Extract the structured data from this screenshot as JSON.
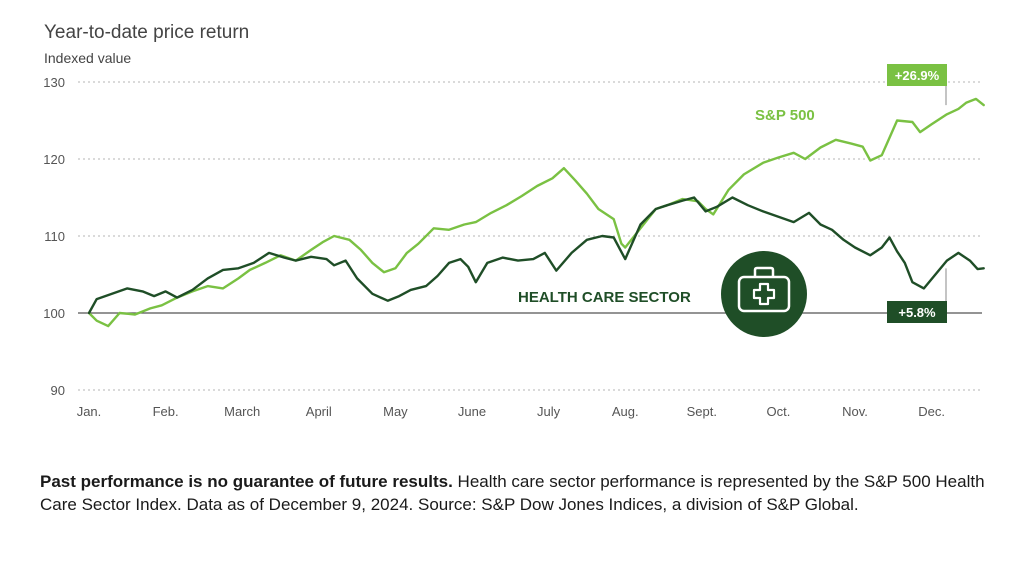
{
  "chart_data": {
    "type": "line",
    "title": "Year-to-date price return",
    "ylabel": "Indexed value",
    "ylim": [
      90,
      130
    ],
    "yticks": [
      90,
      100,
      110,
      120,
      130
    ],
    "grid": true,
    "months": [
      "Jan.",
      "Feb.",
      "March",
      "April",
      "May",
      "June",
      "July",
      "Aug.",
      "Sept.",
      "Oct.",
      "Nov.",
      "Dec."
    ],
    "baseline": 100,
    "colors": {
      "sp500": "#7ac143",
      "health": "#1f4e27",
      "baseline": "#555555",
      "grid": "#b5b5b5"
    },
    "series": [
      {
        "name": "S&P 500",
        "end_label": "+26.9%",
        "points": [
          [
            0.0,
            100.0
          ],
          [
            0.1,
            99.0
          ],
          [
            0.25,
            98.3
          ],
          [
            0.4,
            100.0
          ],
          [
            0.6,
            99.8
          ],
          [
            0.8,
            100.6
          ],
          [
            0.95,
            101.0
          ],
          [
            1.15,
            102.0
          ],
          [
            1.35,
            102.8
          ],
          [
            1.55,
            103.5
          ],
          [
            1.75,
            103.2
          ],
          [
            1.95,
            104.5
          ],
          [
            2.1,
            105.6
          ],
          [
            2.3,
            106.5
          ],
          [
            2.5,
            107.5
          ],
          [
            2.7,
            106.8
          ],
          [
            2.9,
            108.2
          ],
          [
            3.05,
            109.2
          ],
          [
            3.2,
            110.0
          ],
          [
            3.4,
            109.5
          ],
          [
            3.55,
            108.2
          ],
          [
            3.7,
            106.5
          ],
          [
            3.85,
            105.3
          ],
          [
            4.0,
            105.8
          ],
          [
            4.15,
            107.8
          ],
          [
            4.3,
            109.0
          ],
          [
            4.5,
            111.0
          ],
          [
            4.7,
            110.8
          ],
          [
            4.9,
            111.5
          ],
          [
            5.05,
            111.8
          ],
          [
            5.25,
            113.0
          ],
          [
            5.45,
            114.0
          ],
          [
            5.65,
            115.2
          ],
          [
            5.85,
            116.5
          ],
          [
            6.05,
            117.5
          ],
          [
            6.2,
            118.8
          ],
          [
            6.35,
            117.2
          ],
          [
            6.5,
            115.5
          ],
          [
            6.65,
            113.5
          ],
          [
            6.85,
            112.2
          ],
          [
            6.95,
            109.0
          ],
          [
            7.0,
            108.5
          ],
          [
            7.2,
            111.0
          ],
          [
            7.4,
            113.5
          ],
          [
            7.55,
            114.0
          ],
          [
            7.75,
            114.8
          ],
          [
            7.95,
            114.5
          ],
          [
            8.05,
            113.5
          ],
          [
            8.15,
            112.8
          ],
          [
            8.35,
            116.0
          ],
          [
            8.55,
            118.0
          ],
          [
            8.8,
            119.5
          ],
          [
            9.0,
            120.2
          ],
          [
            9.2,
            120.8
          ],
          [
            9.35,
            120.0
          ],
          [
            9.55,
            121.5
          ],
          [
            9.75,
            122.5
          ],
          [
            9.95,
            122.0
          ],
          [
            10.1,
            121.6
          ],
          [
            10.2,
            119.8
          ],
          [
            10.35,
            120.5
          ],
          [
            10.55,
            125.0
          ],
          [
            10.75,
            124.8
          ],
          [
            10.85,
            123.5
          ],
          [
            11.0,
            124.5
          ],
          [
            11.2,
            125.8
          ],
          [
            11.35,
            126.5
          ],
          [
            11.45,
            127.3
          ],
          [
            11.58,
            127.8
          ],
          [
            11.68,
            127.0
          ]
        ]
      },
      {
        "name": "HEALTH CARE SECTOR",
        "end_label": "+5.8%",
        "points": [
          [
            0.0,
            100.0
          ],
          [
            0.1,
            101.8
          ],
          [
            0.3,
            102.5
          ],
          [
            0.5,
            103.2
          ],
          [
            0.7,
            102.8
          ],
          [
            0.85,
            102.2
          ],
          [
            1.0,
            102.8
          ],
          [
            1.15,
            102.0
          ],
          [
            1.35,
            103.0
          ],
          [
            1.55,
            104.5
          ],
          [
            1.75,
            105.6
          ],
          [
            1.95,
            105.8
          ],
          [
            2.15,
            106.5
          ],
          [
            2.35,
            107.8
          ],
          [
            2.55,
            107.2
          ],
          [
            2.7,
            106.8
          ],
          [
            2.9,
            107.3
          ],
          [
            3.1,
            107.0
          ],
          [
            3.2,
            106.2
          ],
          [
            3.35,
            106.8
          ],
          [
            3.5,
            104.5
          ],
          [
            3.7,
            102.5
          ],
          [
            3.9,
            101.6
          ],
          [
            4.05,
            102.2
          ],
          [
            4.2,
            103.0
          ],
          [
            4.4,
            103.5
          ],
          [
            4.55,
            104.8
          ],
          [
            4.7,
            106.5
          ],
          [
            4.85,
            107.0
          ],
          [
            4.95,
            106.0
          ],
          [
            5.05,
            104.0
          ],
          [
            5.2,
            106.5
          ],
          [
            5.4,
            107.2
          ],
          [
            5.6,
            106.8
          ],
          [
            5.8,
            107.0
          ],
          [
            5.95,
            107.8
          ],
          [
            6.1,
            105.5
          ],
          [
            6.3,
            107.8
          ],
          [
            6.5,
            109.5
          ],
          [
            6.7,
            110.0
          ],
          [
            6.85,
            109.8
          ],
          [
            7.0,
            107.0
          ],
          [
            7.2,
            111.5
          ],
          [
            7.4,
            113.5
          ],
          [
            7.55,
            114.0
          ],
          [
            7.75,
            114.6
          ],
          [
            7.9,
            115.0
          ],
          [
            8.05,
            113.2
          ],
          [
            8.2,
            113.8
          ],
          [
            8.4,
            115.0
          ],
          [
            8.6,
            114.0
          ],
          [
            8.8,
            113.2
          ],
          [
            9.0,
            112.5
          ],
          [
            9.2,
            111.8
          ],
          [
            9.4,
            113.0
          ],
          [
            9.55,
            111.5
          ],
          [
            9.7,
            110.8
          ],
          [
            9.85,
            109.5
          ],
          [
            10.0,
            108.5
          ],
          [
            10.2,
            107.5
          ],
          [
            10.35,
            108.5
          ],
          [
            10.45,
            109.8
          ],
          [
            10.55,
            108.0
          ],
          [
            10.65,
            106.5
          ],
          [
            10.75,
            104.0
          ],
          [
            10.9,
            103.2
          ],
          [
            11.05,
            105.0
          ],
          [
            11.2,
            106.8
          ],
          [
            11.35,
            107.8
          ],
          [
            11.5,
            106.8
          ],
          [
            11.6,
            105.7
          ],
          [
            11.68,
            105.8
          ]
        ]
      }
    ]
  },
  "footnote": {
    "bold": "Past performance is no guarantee of future results.",
    "text": " Health care sector performance is represented by the S&P 500 Health Care Sector Index. Data as of December 9, 2024. Source: S&P Dow Jones Indices, a division of S&P Global."
  },
  "icon": "medical-kit-icon"
}
